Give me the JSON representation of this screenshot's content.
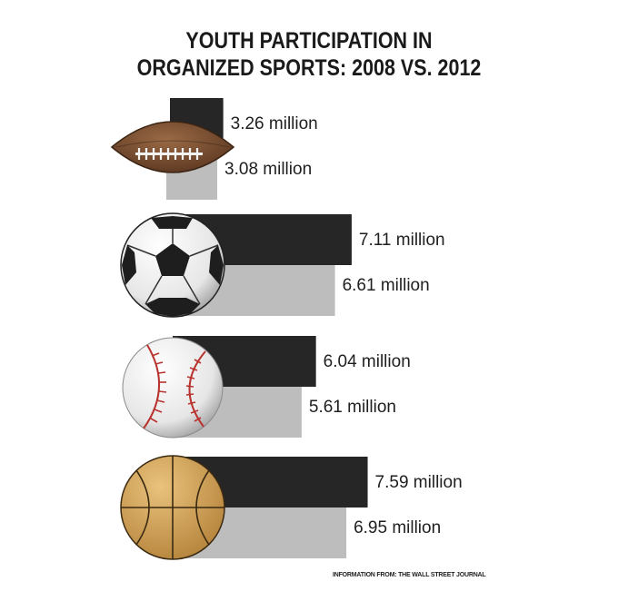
{
  "chart_data": {
    "type": "bar",
    "orientation": "horizontal",
    "title_lines": [
      "YOUTH PARTICIPATION IN",
      "ORGANIZED SPORTS: 2008 VS. 2012"
    ],
    "categories": [
      "football-icon",
      "soccer-ball-icon",
      "baseball-icon",
      "basketball-icon"
    ],
    "series": [
      {
        "values": [
          3.26,
          7.11,
          6.04,
          7.59
        ],
        "labels": [
          "3.26 million",
          "7.11 million",
          "6.04 million",
          "7.59 million"
        ],
        "color": "#262626"
      },
      {
        "values": [
          3.08,
          6.61,
          5.61,
          6.95
        ],
        "labels": [
          "3.08 million",
          "6.61 million",
          "5.61 million",
          "6.95 million"
        ],
        "color": "#bdbdbd"
      }
    ],
    "unit": "million"
  },
  "source_text": "INFORMATION FROM: THE WALL STREET JOURNAL"
}
